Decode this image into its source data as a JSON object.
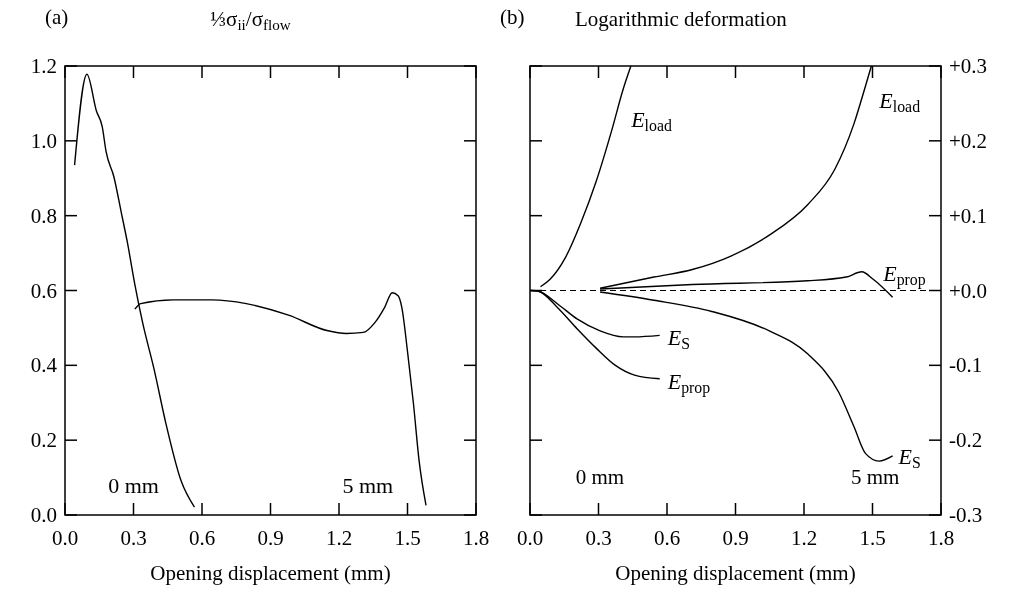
{
  "chart_data": [
    {
      "type": "line",
      "title": "(a)",
      "ylabel": "⅓σ$_{ii}$/σ$_{flow}$",
      "xlabel": "Opening displacement (mm)",
      "xlim": [
        0,
        1.8
      ],
      "xticks": [
        {
          "value": 0,
          "label": "0.0"
        },
        0.3,
        0.6,
        0.9,
        1.2,
        1.5,
        1.8
      ],
      "ylim": [
        0,
        1.2
      ],
      "yticks": [
        {
          "value": 0,
          "label": "0.0"
        },
        0.2,
        0.4,
        0.6,
        0.8,
        {
          "value": 1,
          "label": "1.0"
        },
        1.2
      ],
      "series": [
        {
          "name": "0 mm",
          "color": "#000000",
          "x": [
            0.042,
            0.096,
            0.138,
            0.163,
            0.18,
            0.214,
            0.247,
            0.273,
            0.306,
            0.34,
            0.39,
            0.441,
            0.508,
            0.567
          ],
          "values": [
            0.935,
            1.178,
            1.079,
            1.038,
            0.971,
            0.904,
            0.807,
            0.729,
            0.616,
            0.514,
            0.39,
            0.247,
            0.092,
            0.021
          ]
        },
        {
          "name": "5 mm",
          "color": "#000000",
          "x": [
            0.306,
            0.331,
            0.474,
            0.643,
            0.794,
            0.979,
            1.147,
            1.232,
            1.307,
            1.357,
            1.4,
            1.433,
            1.459,
            1.475,
            1.501,
            1.526,
            1.551,
            1.581
          ],
          "values": [
            0.55,
            0.565,
            0.575,
            0.575,
            0.565,
            0.534,
            0.493,
            0.485,
            0.488,
            0.514,
            0.555,
            0.594,
            0.586,
            0.555,
            0.432,
            0.298,
            0.144,
            0.026
          ]
        }
      ]
    },
    {
      "type": "line",
      "title": "(b)",
      "y2label": "Logarithmic deformation",
      "xlabel": "Opening displacement (mm)",
      "xlim": [
        0,
        1.8
      ],
      "xticks": [
        {
          "value": 0,
          "label": "0.0"
        },
        0.3,
        0.6,
        0.9,
        1.2,
        1.5,
        1.8
      ],
      "y2lim": [
        -0.3,
        0.3
      ],
      "y2ticks": [
        -0.3,
        -0.2,
        -0.1,
        {
          "value": 0,
          "label": "+0.0"
        },
        {
          "value": 0.1,
          "label": "+0.1"
        },
        {
          "value": 0.2,
          "label": "+0.2"
        },
        {
          "value": 0.3,
          "label": "+0.3"
        }
      ],
      "ref_lines": [
        {
          "axis": "y2",
          "value": 0,
          "line_style": "dashed"
        }
      ],
      "annotations": [
        "0 mm",
        "5 mm"
      ],
      "series": [
        {
          "name": "E$_{load}$",
          "axis": "y2",
          "color": "#000000",
          "x": [
            0.046,
            0.088,
            0.155,
            0.222,
            0.29,
            0.357,
            0.408,
            0.442
          ],
          "values": [
            0.005,
            0.015,
            0.044,
            0.09,
            0.146,
            0.213,
            0.269,
            0.3
          ]
        },
        {
          "name": "E$_{S}$",
          "axis": "y2",
          "color": "#000000",
          "x": [
            0.003,
            0.037,
            0.121,
            0.206,
            0.307,
            0.408,
            0.458,
            0.568
          ],
          "values": [
            0,
            -0.001,
            -0.018,
            -0.038,
            -0.054,
            -0.062,
            -0.062,
            -0.06
          ]
        },
        {
          "name": "E$_{prop}$",
          "axis": "y2",
          "color": "#000000",
          "x": [
            0.003,
            0.037,
            0.121,
            0.206,
            0.29,
            0.374,
            0.458,
            0.568
          ],
          "values": [
            0,
            -0.001,
            -0.023,
            -0.051,
            -0.077,
            -0.1,
            -0.113,
            -0.118
          ]
        },
        {
          "name": "E$_{load}$",
          "axis": "y2",
          "color": "#000000",
          "x": [
            0.307,
            0.543,
            0.711,
            0.88,
            1.048,
            1.217,
            1.335,
            1.419,
            1.47,
            1.495
          ],
          "values": [
            0.003,
            0.018,
            0.028,
            0.046,
            0.074,
            0.115,
            0.162,
            0.223,
            0.274,
            0.3
          ]
        },
        {
          "name": "E$_{prop}$",
          "axis": "y2",
          "color": "#000000",
          "x": [
            0.307,
            0.711,
            1.217,
            1.385,
            1.453,
            1.503,
            1.588
          ],
          "values": [
            0.002,
            0.008,
            0.013,
            0.018,
            0.025,
            0.015,
            -0.009
          ]
        },
        {
          "name": "E$_{S}$",
          "axis": "y2",
          "color": "#000000",
          "x": [
            0.307,
            0.543,
            0.796,
            1.048,
            1.217,
            1.352,
            1.419,
            1.47,
            1.529,
            1.588
          ],
          "values": [
            -0.002,
            -0.013,
            -0.028,
            -0.054,
            -0.085,
            -0.136,
            -0.182,
            -0.218,
            -0.228,
            -0.221
          ]
        }
      ]
    }
  ]
}
